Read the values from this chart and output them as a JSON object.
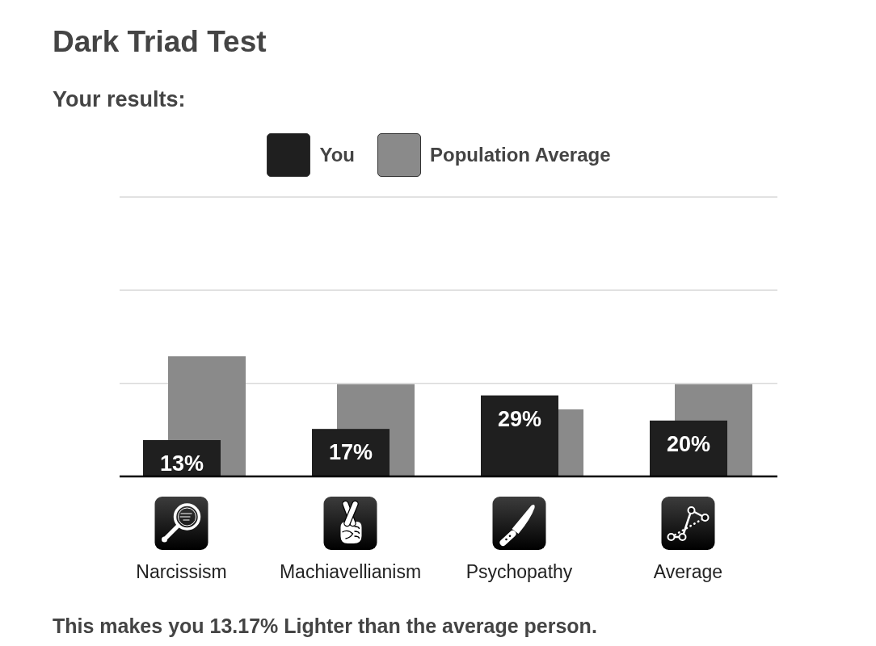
{
  "chart_data": {
    "type": "bar",
    "title": "Dark Triad Test",
    "subtitle": "Your results:",
    "categories": [
      "Narcissism",
      "Machiavellianism",
      "Psychopathy",
      "Average"
    ],
    "series": [
      {
        "name": "You",
        "color": "#1f1f1f",
        "values": [
          13,
          17,
          29,
          20
        ],
        "value_labels": [
          "13%",
          "17%",
          "29%",
          "20%"
        ]
      },
      {
        "name": "Population Average",
        "color": "#8a8a8a",
        "values": [
          43,
          33,
          24,
          33
        ]
      }
    ],
    "ylim": [
      0,
      100
    ],
    "yticks": [
      {
        "value": 0,
        "label": null
      },
      {
        "value": 33.3,
        "label": null
      },
      {
        "value": 66.7,
        "label": null
      },
      {
        "value": 100,
        "label": null
      }
    ],
    "tick_labels": "x",
    "grid": "y",
    "legend": "top",
    "annotations": [
      "This makes you 13.17% Lighter than the average person."
    ]
  }
}
